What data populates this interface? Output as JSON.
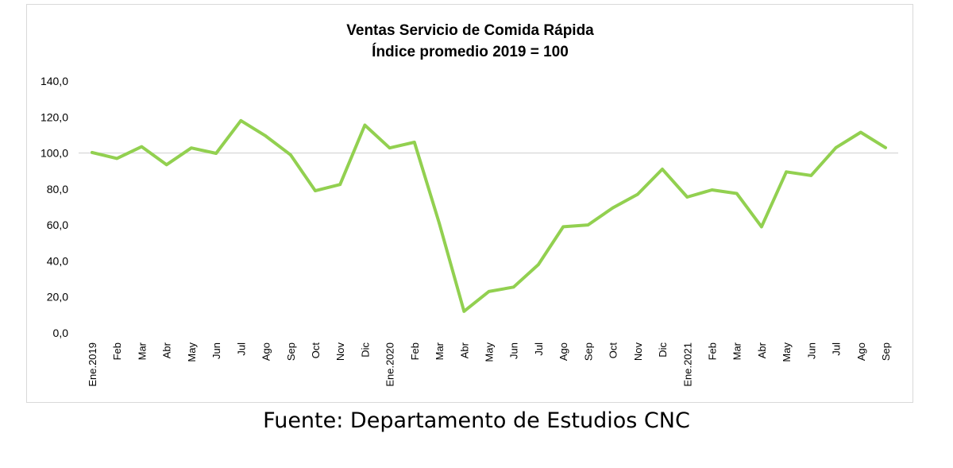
{
  "chart_data": {
    "type": "line",
    "title": "Ventas Servicio de Comida  Rápida",
    "subtitle": "Índice promedio 2019 = 100",
    "xlabel": "",
    "ylabel": "",
    "categories": [
      "Ene.2019",
      "Feb",
      "Mar",
      "Abr",
      "May",
      "Jun",
      "Jul",
      "Ago",
      "Sep",
      "Oct",
      "Nov",
      "Dic",
      "Ene.2020",
      "Feb",
      "Mar",
      "Abr",
      "May",
      "Jun",
      "Jul",
      "Ago",
      "Sep",
      "Oct",
      "Nov",
      "Dic",
      "Ene.2021",
      "Feb",
      "Mar",
      "Abr",
      "May",
      "Jun",
      "Jul",
      "Ago",
      "Sep"
    ],
    "series": [
      {
        "name": "",
        "color": "#92d050",
        "values": [
          100.3,
          97.0,
          103.5,
          93.5,
          102.8,
          99.8,
          118.0,
          109.5,
          99.0,
          79.0,
          82.5,
          115.5,
          102.8,
          106.0,
          61.0,
          12.0,
          23.0,
          25.5,
          38.0,
          59.0,
          60.0,
          69.5,
          77.0,
          91.0,
          75.5,
          79.5,
          77.5,
          59.0,
          89.5,
          87.5,
          103.0,
          111.5,
          103.0
        ]
      }
    ],
    "yticks": [
      "0,0",
      "20,0",
      "40,0",
      "60,0",
      "80,0",
      "100,0",
      "120,0",
      "140,0"
    ],
    "ylim": [
      0,
      140
    ],
    "reference_line": 100,
    "grid": false,
    "legend": "none"
  },
  "source": "Fuente: Departamento de Estudios CNC"
}
